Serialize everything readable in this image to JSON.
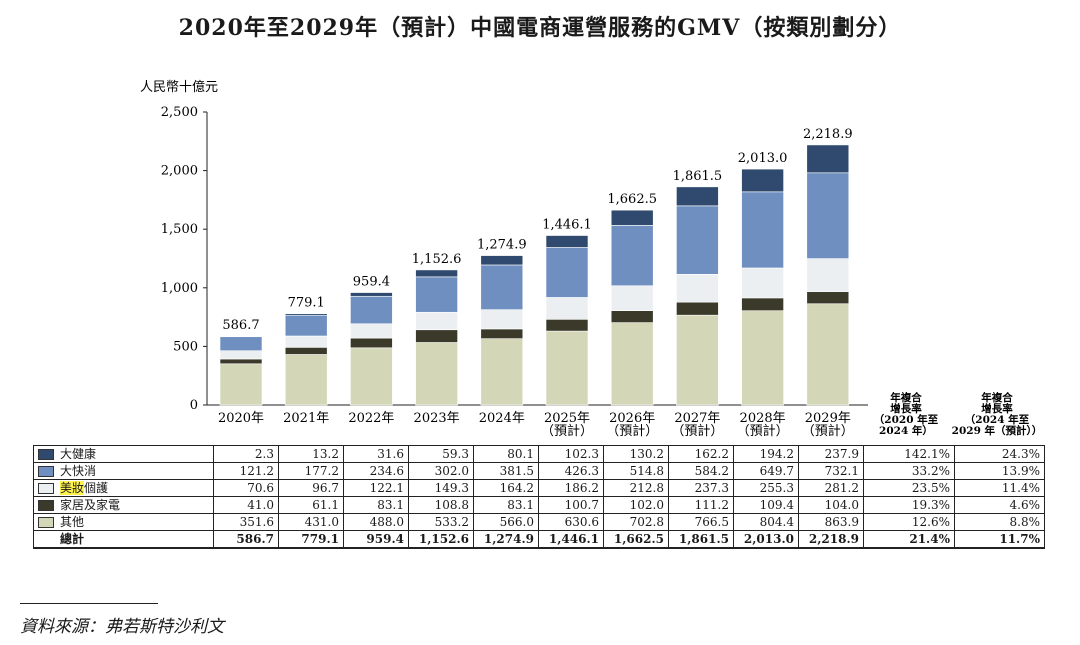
{
  "title": "2020年至2029年（預計）中國電商運營服務的GMV（按類別劃分）",
  "unit_label": "人民幣十億元",
  "source": "資料來源：弗若斯特沙利文",
  "cagr_headers": {
    "h1": [
      "年複合",
      "增長率",
      "（2020 年至",
      "2024 年）"
    ],
    "h2": [
      "年複合",
      "增長率",
      "（2024 年至",
      "2029 年（預計））"
    ]
  },
  "chart_data": {
    "type": "bar",
    "stacked": true,
    "title": "2020年至2029年（預計）中國電商運營服務的GMV（按類別劃分）",
    "ylabel": "人民幣十億元",
    "xlabel": "",
    "ylim": [
      0,
      2500
    ],
    "yticks": [
      0,
      500,
      1000,
      1500,
      2000,
      2500
    ],
    "ytick_labels": [
      "0",
      "500",
      "1,000",
      "1,500",
      "2,000",
      "2,500"
    ],
    "categories": [
      [
        "2020年"
      ],
      [
        "2021年"
      ],
      [
        "2022年"
      ],
      [
        "2023年"
      ],
      [
        "2024年"
      ],
      [
        "2025年",
        "（預計）"
      ],
      [
        "2026年",
        "（預計）"
      ],
      [
        "2027年",
        "（預計）"
      ],
      [
        "2028年",
        "（預計）"
      ],
      [
        "2029年",
        "（預計）"
      ]
    ],
    "totals": [
      586.7,
      779.1,
      959.4,
      1152.6,
      1274.9,
      1446.1,
      1662.5,
      1861.5,
      2013.0,
      2218.9
    ],
    "total_labels": [
      "586.7",
      "779.1",
      "959.4",
      "1,152.6",
      "1,274.9",
      "1,446.1",
      "1,662.5",
      "1,861.5",
      "2,013.0",
      "2,218.9"
    ],
    "series": [
      {
        "name": "其他",
        "color": "#d3d7b8",
        "values": [
          351.6,
          431.0,
          488.0,
          533.2,
          566.0,
          630.6,
          702.8,
          766.5,
          804.4,
          863.9
        ],
        "cagr1": "12.6%",
        "cagr2": "8.8%"
      },
      {
        "name": "家居及家電",
        "color": "#3b3a2a",
        "values": [
          41.0,
          61.1,
          83.1,
          108.8,
          83.1,
          100.7,
          102.0,
          111.2,
          109.4,
          104.0
        ],
        "cagr1": "19.3%",
        "cagr2": "4.6%"
      },
      {
        "name": "美妝個護",
        "color": "#eceff2",
        "values": [
          70.6,
          96.7,
          122.1,
          149.3,
          164.2,
          186.2,
          212.8,
          237.3,
          255.3,
          281.2
        ],
        "cagr1": "23.5%",
        "cagr2": "11.4%"
      },
      {
        "name": "大快消",
        "color": "#6e8fbf",
        "values": [
          121.2,
          177.2,
          234.6,
          302.0,
          381.5,
          426.3,
          514.8,
          584.2,
          649.7,
          732.1
        ],
        "cagr1": "33.2%",
        "cagr2": "13.9%"
      },
      {
        "name": "大健康",
        "color": "#2f4a6e",
        "values": [
          2.3,
          13.2,
          31.6,
          59.3,
          80.1,
          102.3,
          130.2,
          162.2,
          194.2,
          237.9
        ],
        "cagr1": "142.1%",
        "cagr2": "24.3%"
      }
    ],
    "table_rows": [
      {
        "label": "大健康",
        "color": "#2f4a6e",
        "values": [
          "2.3",
          "13.2",
          "31.6",
          "59.3",
          "80.1",
          "102.3",
          "130.2",
          "162.2",
          "194.2",
          "237.9"
        ],
        "cagr1": "142.1%",
        "cagr2": "24.3%"
      },
      {
        "label": "大快消",
        "color": "#6e8fbf",
        "values": [
          "121.2",
          "177.2",
          "234.6",
          "302.0",
          "381.5",
          "426.3",
          "514.8",
          "584.2",
          "649.7",
          "732.1"
        ],
        "cagr1": "33.2%",
        "cagr2": "13.9%"
      },
      {
        "label": "美妝個護",
        "label_highlight": "美妝",
        "label_rest": "個護",
        "color": "#eceff2",
        "values": [
          "70.6",
          "96.7",
          "122.1",
          "149.3",
          "164.2",
          "186.2",
          "212.8",
          "237.3",
          "255.3",
          "281.2"
        ],
        "cagr1": "23.5%",
        "cagr2": "11.4%"
      },
      {
        "label": "家居及家電",
        "color": "#3b3a2a",
        "values": [
          "41.0",
          "61.1",
          "83.1",
          "108.8",
          "83.1",
          "100.7",
          "102.0",
          "111.2",
          "109.4",
          "104.0"
        ],
        "cagr1": "19.3%",
        "cagr2": "4.6%"
      },
      {
        "label": "其他",
        "color": "#d3d7b8",
        "values": [
          "351.6",
          "431.0",
          "488.0",
          "533.2",
          "566.0",
          "630.6",
          "702.8",
          "766.5",
          "804.4",
          "863.9"
        ],
        "cagr1": "12.6%",
        "cagr2": "8.8%"
      }
    ],
    "total_row": {
      "label": "總計",
      "values": [
        "586.7",
        "779.1",
        "959.4",
        "1,152.6",
        "1,274.9",
        "1,446.1",
        "1,662.5",
        "1,861.5",
        "2,013.0",
        "2,218.9"
      ],
      "cagr1": "21.4%",
      "cagr2": "11.7%"
    }
  }
}
